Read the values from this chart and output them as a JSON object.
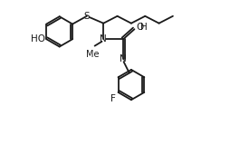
{
  "background": "#ffffff",
  "line_color": "#1a1a1a",
  "line_width": 1.3,
  "font_size": 7.5,
  "xlim": [
    -1.5,
    3.2
  ],
  "ylim": [
    -2.6,
    1.5
  ]
}
